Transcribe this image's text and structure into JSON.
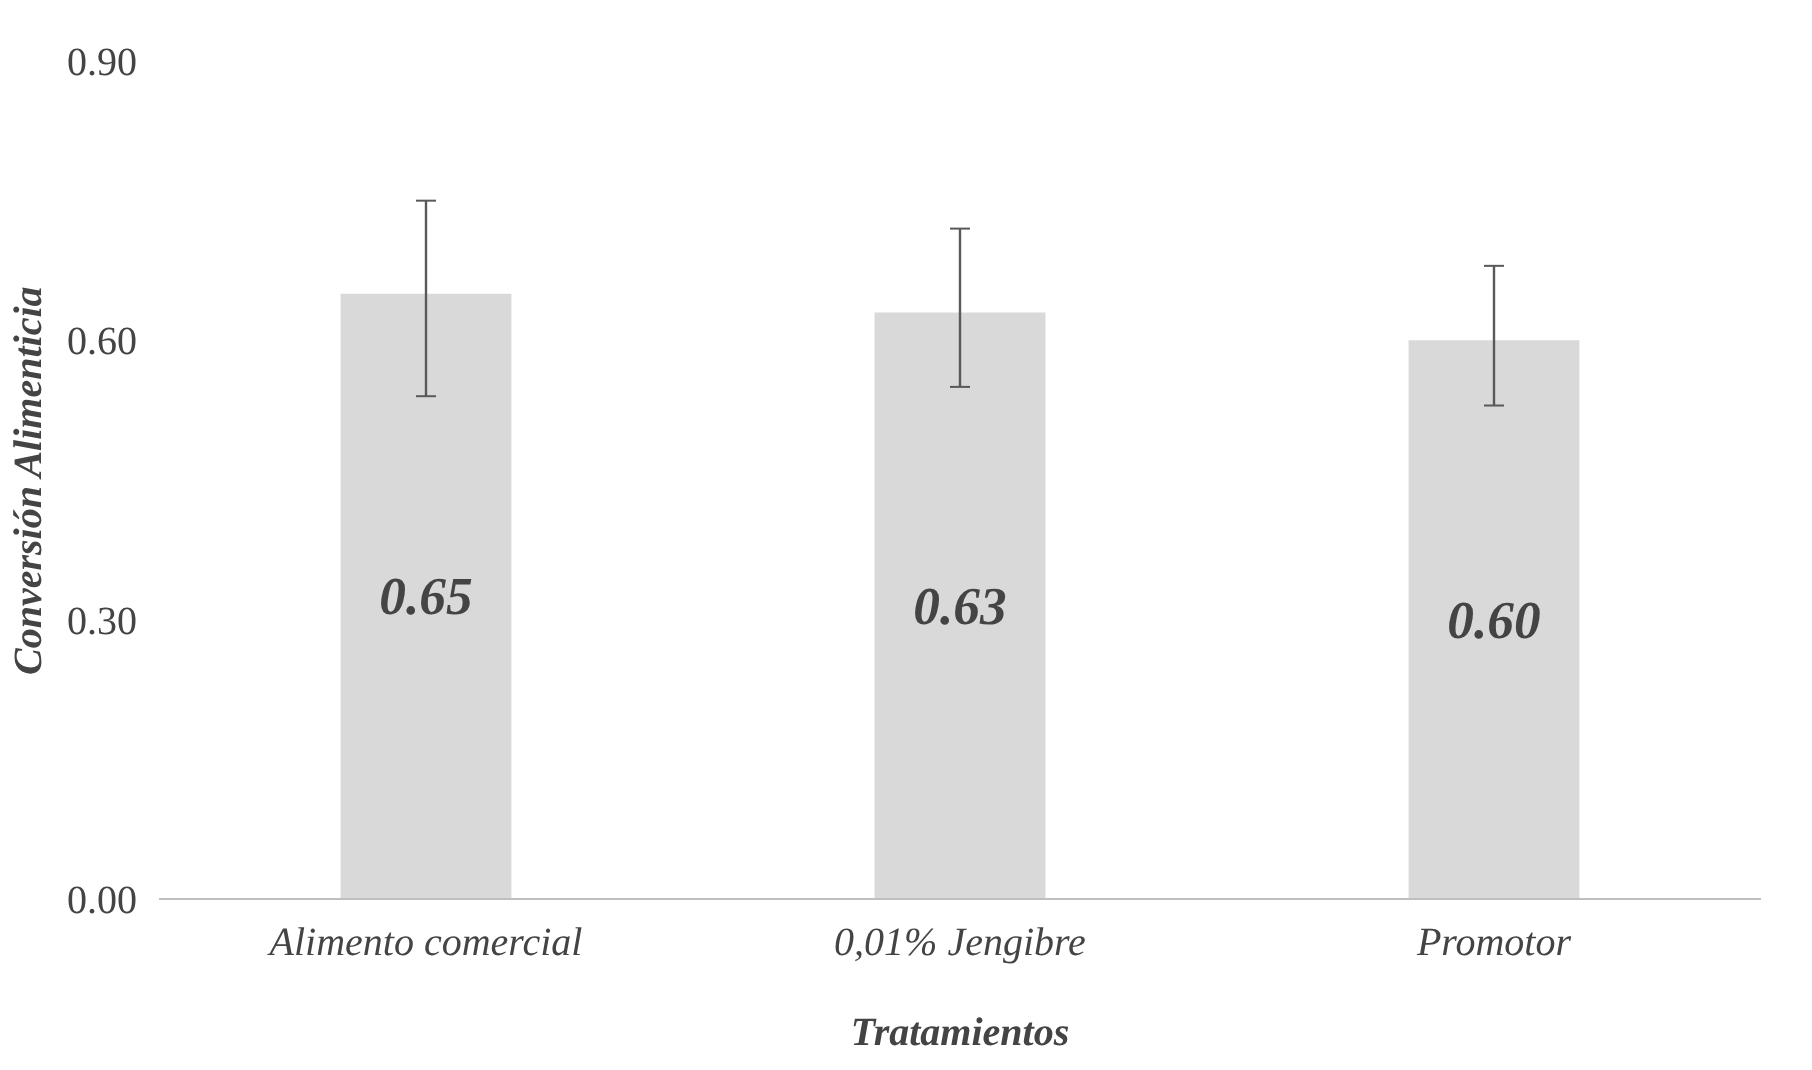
{
  "chart_data": {
    "type": "bar",
    "xlabel": "Tratamientos",
    "ylabel": "Conversión Alimenticia",
    "categories": [
      "Alimento comercial",
      "0,01% Jengibre",
      "Promotor"
    ],
    "values": [
      0.65,
      0.63,
      0.6
    ],
    "color": "#d9d9d9",
    "value_labels": [
      "0.65",
      "0.63",
      "0.60"
    ],
    "errors": [
      [
        0.54,
        0.75
      ],
      [
        0.55,
        0.72
      ],
      [
        0.53,
        0.68
      ]
    ],
    "ylim": [
      0,
      0.9
    ],
    "yticks": [
      {
        "value": 0,
        "label": "0.00"
      },
      {
        "value": 0.3,
        "label": "0.30"
      },
      {
        "value": 0.6,
        "label": "0.60"
      },
      {
        "value": 0.9,
        "label": "0.90"
      }
    ],
    "grid": false
  }
}
